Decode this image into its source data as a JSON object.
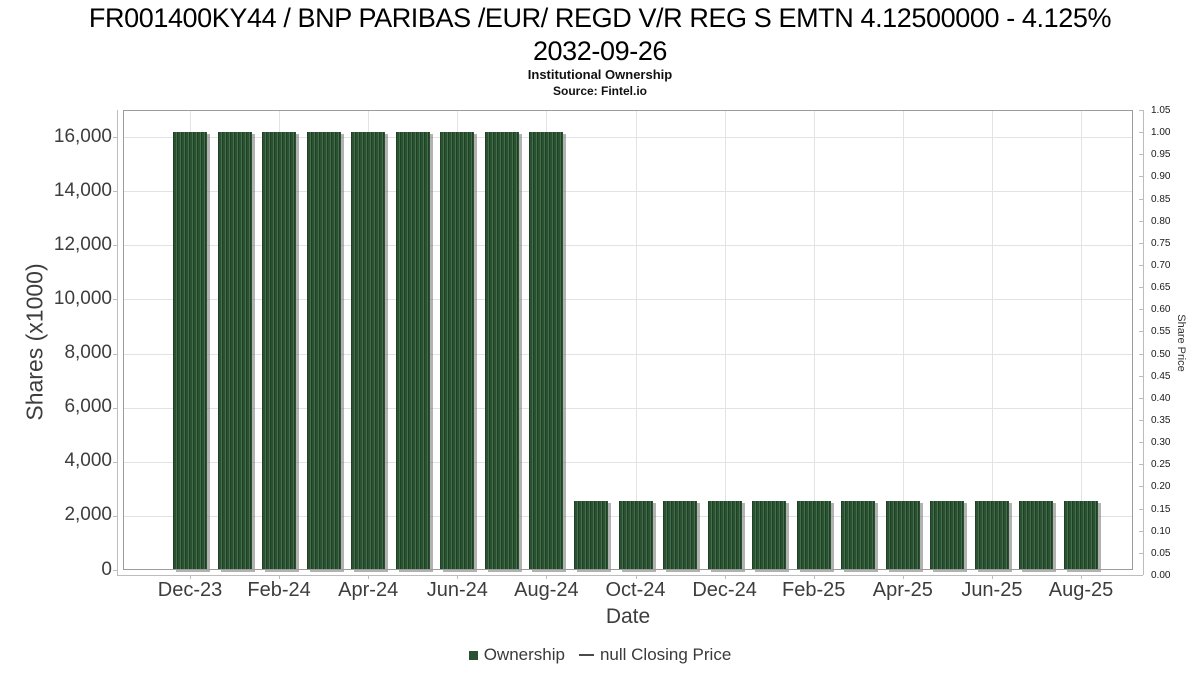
{
  "chart_data": {
    "type": "bar",
    "title_line1": "FR001400KY44 / BNP PARIBAS /EUR/ REGD V/R REG S EMTN 4.12500000 - 4.125%",
    "title_line2": "2032-09-26",
    "subtitle": "Institutional Ownership",
    "source": "Source: Fintel.io",
    "xlabel": "Date",
    "ylabel_left": "Shares (x1000)",
    "ylabel_right": "Share Price",
    "categories": [
      "Dec-23",
      "Jan-24",
      "Feb-24",
      "Mar-24",
      "Apr-24",
      "May-24",
      "Jun-24",
      "Jul-24",
      "Aug-24",
      "Sep-24",
      "Oct-24",
      "Nov-24",
      "Dec-24",
      "Jan-25",
      "Feb-25",
      "Mar-25",
      "Apr-25",
      "May-25",
      "Jun-25",
      "Jul-25",
      "Aug-25"
    ],
    "series": [
      {
        "name": "Ownership",
        "unit": "shares x1000",
        "values": [
          16200,
          16200,
          16200,
          16200,
          16200,
          16200,
          16200,
          16200,
          16200,
          2550,
          2550,
          2550,
          2550,
          2550,
          2550,
          2550,
          2550,
          2550,
          2550,
          2550,
          2550
        ]
      },
      {
        "name": "null Closing Price",
        "unit": "price",
        "values": []
      }
    ],
    "x_tick_label_indices": [
      0,
      2,
      4,
      6,
      8,
      10,
      12,
      14,
      16,
      18,
      20
    ],
    "y_left_tick_values": [
      0,
      2000,
      4000,
      6000,
      8000,
      10000,
      12000,
      14000,
      16000
    ],
    "y_left_tick_labels": [
      "0",
      "2,000",
      "4,000",
      "6,000",
      "8,000",
      "10,000",
      "12,000",
      "14,000",
      "16,000"
    ],
    "ylim_left": [
      0,
      17000
    ],
    "y_right_tick_labels": [
      "0.00",
      "0.05",
      "0.10",
      "0.15",
      "0.20",
      "0.25",
      "0.30",
      "0.35",
      "0.40",
      "0.45",
      "0.50",
      "0.55",
      "0.60",
      "0.65",
      "0.70",
      "0.75",
      "0.80",
      "0.85",
      "0.90",
      "0.95",
      "1.00",
      "1.05"
    ],
    "ylim_right": [
      0.0,
      1.05
    ],
    "grid": true,
    "legend_position": "bottom",
    "legend": [
      {
        "label": "Ownership",
        "glyph": "square"
      },
      {
        "label": "null Closing Price",
        "glyph": "dash"
      }
    ]
  },
  "colors": {
    "bar_fill": "#2b5132",
    "bar_stripe_dark": "#1e4126",
    "bar_stripe_light": "#41704a",
    "bar_shadow": "#737373",
    "gridline": "#e3e3e3",
    "plot_border": "#9c9c9c",
    "axis_spine": "#bdbdbd",
    "tick_label": "#3d3d3d",
    "legend_dash": "#4a4a4a"
  }
}
